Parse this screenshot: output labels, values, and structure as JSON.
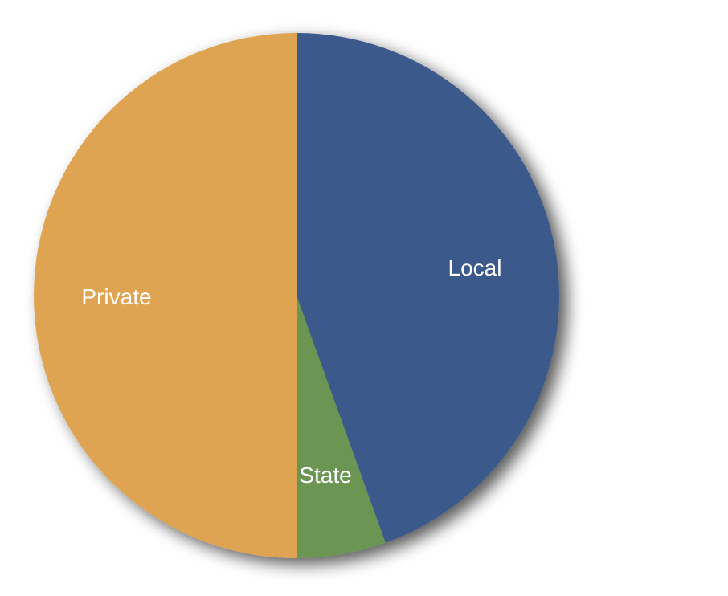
{
  "chart_data": {
    "type": "pie",
    "start_angle": "12 o'clock",
    "direction": "clockwise",
    "shadow": true,
    "slices": [
      {
        "label": "Local",
        "value": 44.5,
        "color": "#3a5a8b"
      },
      {
        "label": "State",
        "value": 5.5,
        "color": "#6a9553"
      },
      {
        "label": "Private",
        "value": 50.0,
        "color": "#dfa451"
      }
    ]
  }
}
